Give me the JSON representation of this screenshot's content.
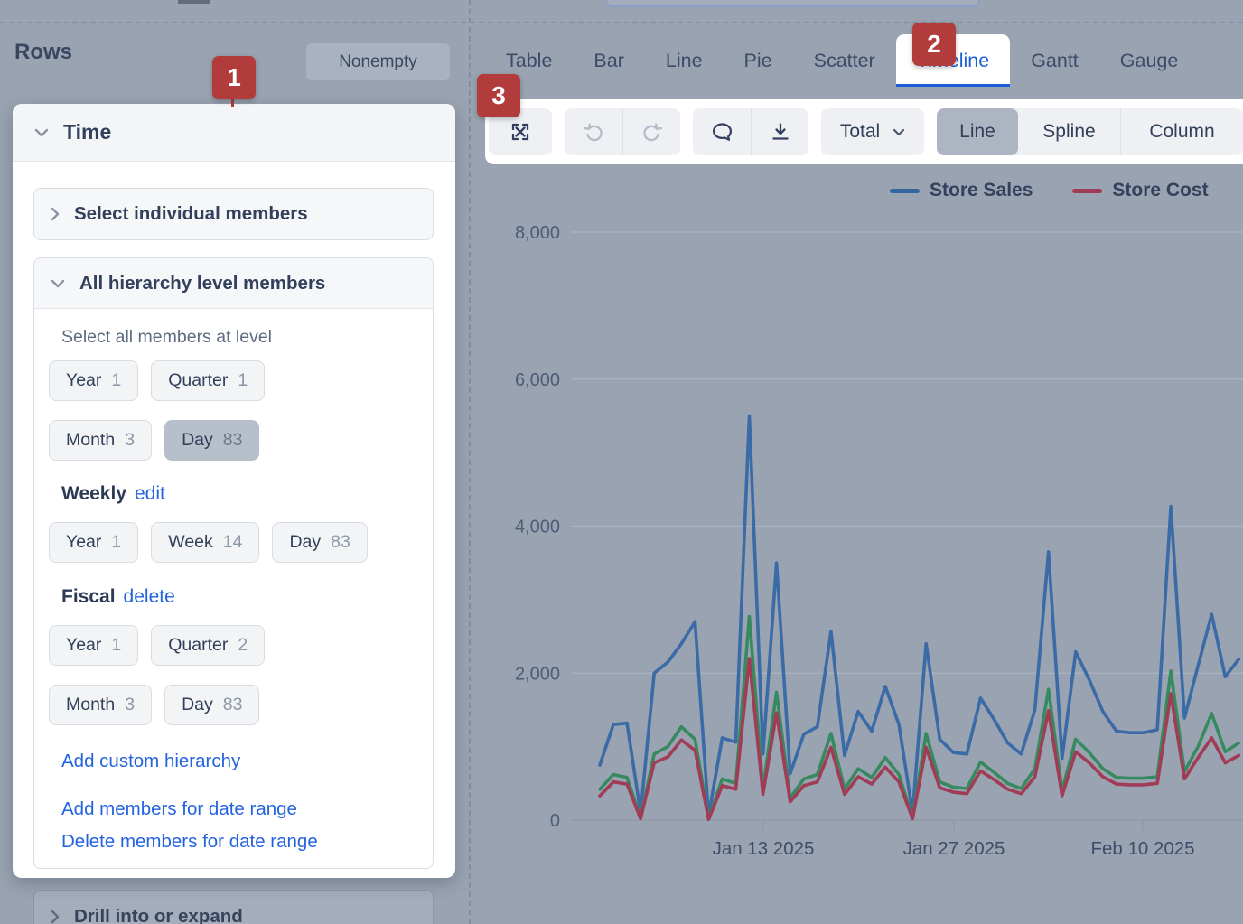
{
  "badges": {
    "one": "1",
    "two": "2",
    "three": "3"
  },
  "rows_panel": {
    "title": "Rows",
    "nonempty_button": "Nonempty"
  },
  "time_panel": {
    "title": "Time",
    "sections": {
      "select_individual": {
        "label": "Select individual members",
        "expanded": false
      },
      "all_hierarchy": {
        "label": "All hierarchy level members",
        "expanded": true
      }
    },
    "select_all_caption": "Select all members at level",
    "default_hierarchy": {
      "levels": [
        {
          "label": "Year",
          "count": "1",
          "selected": false
        },
        {
          "label": "Quarter",
          "count": "1",
          "selected": false
        },
        {
          "label": "Month",
          "count": "3",
          "selected": false
        },
        {
          "label": "Day",
          "count": "83",
          "selected": true
        }
      ]
    },
    "weekly_hierarchy": {
      "title": "Weekly",
      "action_link": "edit",
      "levels": [
        {
          "label": "Year",
          "count": "1",
          "selected": false
        },
        {
          "label": "Week",
          "count": "14",
          "selected": false
        },
        {
          "label": "Day",
          "count": "83",
          "selected": false
        }
      ]
    },
    "fiscal_hierarchy": {
      "title": "Fiscal",
      "action_link": "delete",
      "levels": [
        {
          "label": "Year",
          "count": "1",
          "selected": false
        },
        {
          "label": "Quarter",
          "count": "2",
          "selected": false
        },
        {
          "label": "Month",
          "count": "3",
          "selected": false
        },
        {
          "label": "Day",
          "count": "83",
          "selected": false
        }
      ]
    },
    "links": [
      "Add custom hierarchy",
      "Add members for date range",
      "Delete members for date range"
    ]
  },
  "drill_section": {
    "label": "Drill into or expand"
  },
  "chart_tabs": {
    "tabs": [
      "Table",
      "Bar",
      "Line",
      "Pie",
      "Scatter",
      "Timeline",
      "Gantt",
      "Gauge"
    ],
    "active": "Timeline"
  },
  "toolbar": {
    "icon_groups": [
      [
        "expand"
      ],
      [
        "undo",
        "redo"
      ],
      [
        "comment",
        "download"
      ]
    ],
    "disabled_icons": [
      "undo",
      "redo"
    ],
    "total_dropdown": "Total",
    "modes": [
      "Line",
      "Spline",
      "Column"
    ],
    "active_mode": "Line"
  },
  "chart_data": {
    "type": "line",
    "title": "",
    "x_unit": "day",
    "x_start_date": "Jan 1 2025",
    "x_tick_labels": [
      "Jan 13 2025",
      "Jan 27 2025",
      "Feb 10 2025"
    ],
    "y_ticks": [
      0,
      2000,
      4000,
      6000,
      8000
    ],
    "y_tick_labels": [
      "0",
      "2,000",
      "4,000",
      "6,000",
      "8,000"
    ],
    "ylim": [
      0,
      8000
    ],
    "grid": true,
    "legend_position": "top",
    "legend": [
      {
        "name": "Store Sales",
        "color": "#35679f"
      },
      {
        "name": "Store Cost",
        "color": "#a03c55"
      }
    ],
    "series": [
      {
        "name": "Store Sales",
        "color": "#3a6ba6",
        "values": [
          750,
          1300,
          1320,
          100,
          2000,
          2150,
          2400,
          2700,
          60,
          1120,
          1060,
          5500,
          900,
          3500,
          630,
          1170,
          1270,
          2570,
          880,
          1480,
          1210,
          1820,
          1300,
          100,
          2400,
          1100,
          920,
          900,
          1660,
          1370,
          1050,
          900,
          1500,
          3650,
          840,
          2290,
          1910,
          1480,
          1210,
          1190,
          1190,
          1230,
          4270,
          1390,
          2100,
          2800,
          1950,
          2190
        ]
      },
      {
        "name": "Store Cost",
        "color": "#a03c55",
        "values": [
          330,
          520,
          490,
          20,
          780,
          860,
          1090,
          950,
          10,
          470,
          420,
          2200,
          350,
          1460,
          250,
          470,
          520,
          990,
          350,
          590,
          490,
          720,
          520,
          20,
          990,
          440,
          380,
          360,
          670,
          550,
          420,
          360,
          590,
          1490,
          330,
          930,
          780,
          590,
          490,
          480,
          480,
          500,
          1720,
          560,
          850,
          1120,
          780,
          880
        ]
      },
      {
        "name": "",
        "note": "third series; legend label cut off at right screen edge",
        "color": "#378a60",
        "values": [
          420,
          620,
          580,
          30,
          900,
          1000,
          1270,
          1100,
          20,
          560,
          500,
          2770,
          420,
          1740,
          300,
          560,
          620,
          1180,
          420,
          700,
          580,
          850,
          620,
          30,
          1180,
          520,
          450,
          430,
          790,
          650,
          500,
          430,
          700,
          1780,
          400,
          1100,
          920,
          700,
          580,
          570,
          570,
          590,
          2030,
          660,
          1000,
          1450,
          930,
          1050
        ]
      }
    ]
  }
}
